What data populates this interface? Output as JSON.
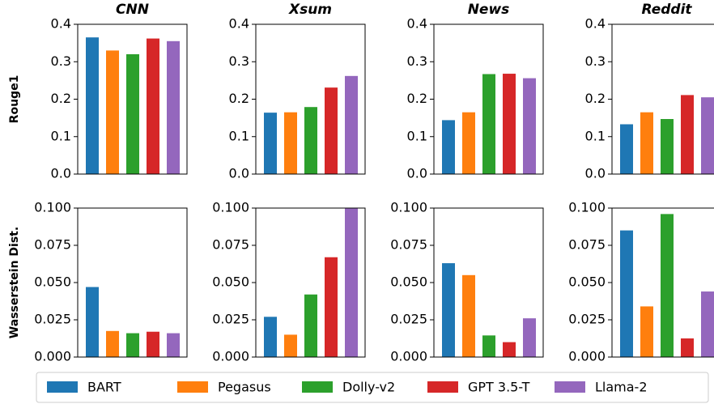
{
  "chart_data": [
    {
      "type": "bar",
      "title": "CNN",
      "ylabel": "Rouge1",
      "values": [
        0.365,
        0.33,
        0.32,
        0.362,
        0.355
      ],
      "ylim": [
        0,
        0.4
      ],
      "yticks": [
        {
          "value": 0,
          "label": "0.0"
        },
        0.1,
        0.2,
        0.3,
        0.4
      ]
    },
    {
      "type": "bar",
      "title": "Xsum",
      "values": [
        0.164,
        0.165,
        0.179,
        0.231,
        0.262
      ],
      "ylim": [
        0,
        0.4
      ],
      "yticks": [
        {
          "value": 0,
          "label": "0.0"
        },
        0.1,
        0.2,
        0.3,
        0.4
      ]
    },
    {
      "type": "bar",
      "title": "News",
      "values": [
        0.144,
        0.165,
        0.267,
        0.268,
        0.256
      ],
      "ylim": [
        0,
        0.4
      ],
      "yticks": [
        {
          "value": 0,
          "label": "0.0"
        },
        0.1,
        0.2,
        0.3,
        0.4
      ]
    },
    {
      "type": "bar",
      "title": "Reddit",
      "values": [
        0.133,
        0.165,
        0.147,
        0.211,
        0.205
      ],
      "ylim": [
        0,
        0.4
      ],
      "yticks": [
        {
          "value": 0,
          "label": "0.0"
        },
        0.1,
        0.2,
        0.3,
        0.4
      ]
    },
    {
      "type": "bar",
      "ylabel": "Wasserstein Dist.",
      "values": [
        0.047,
        0.0175,
        0.016,
        0.017,
        0.016
      ],
      "ylim": [
        0,
        0.1
      ],
      "yticks": [
        {
          "value": 0,
          "label": "0.000"
        },
        {
          "value": 0.025,
          "label": "0.025"
        },
        {
          "value": 0.05,
          "label": "0.050"
        },
        {
          "value": 0.075,
          "label": "0.075"
        },
        {
          "value": 0.1,
          "label": "0.100"
        }
      ]
    },
    {
      "type": "bar",
      "values": [
        0.027,
        0.015,
        0.042,
        0.067,
        0.1
      ],
      "ylim": [
        0,
        0.1
      ],
      "yticks": [
        {
          "value": 0,
          "label": "0.000"
        },
        {
          "value": 0.025,
          "label": "0.025"
        },
        {
          "value": 0.05,
          "label": "0.050"
        },
        {
          "value": 0.075,
          "label": "0.075"
        },
        {
          "value": 0.1,
          "label": "0.100"
        }
      ]
    },
    {
      "type": "bar",
      "values": [
        0.063,
        0.055,
        0.0145,
        0.01,
        0.026
      ],
      "ylim": [
        0,
        0.1
      ],
      "yticks": [
        {
          "value": 0,
          "label": "0.000"
        },
        {
          "value": 0.025,
          "label": "0.025"
        },
        {
          "value": 0.05,
          "label": "0.050"
        },
        {
          "value": 0.075,
          "label": "0.075"
        },
        {
          "value": 0.1,
          "label": "0.100"
        }
      ]
    },
    {
      "type": "bar",
      "values": [
        0.085,
        0.034,
        0.096,
        0.0125,
        0.044
      ],
      "ylim": [
        0,
        0.1
      ],
      "yticks": [
        {
          "value": 0,
          "label": "0.000"
        },
        {
          "value": 0.025,
          "label": "0.025"
        },
        {
          "value": 0.05,
          "label": "0.050"
        },
        {
          "value": 0.075,
          "label": "0.075"
        },
        {
          "value": 0.1,
          "label": "0.100"
        }
      ]
    }
  ],
  "legend": {
    "items": [
      {
        "name": "BART",
        "color": "#1f77b4"
      },
      {
        "name": "Pegasus",
        "color": "#ff7f0e"
      },
      {
        "name": "Dolly-v2",
        "color": "#2ca02c"
      },
      {
        "name": "GPT 3.5-T",
        "color": "#d62728"
      },
      {
        "name": "Llama-2",
        "color": "#9467bd"
      }
    ]
  }
}
